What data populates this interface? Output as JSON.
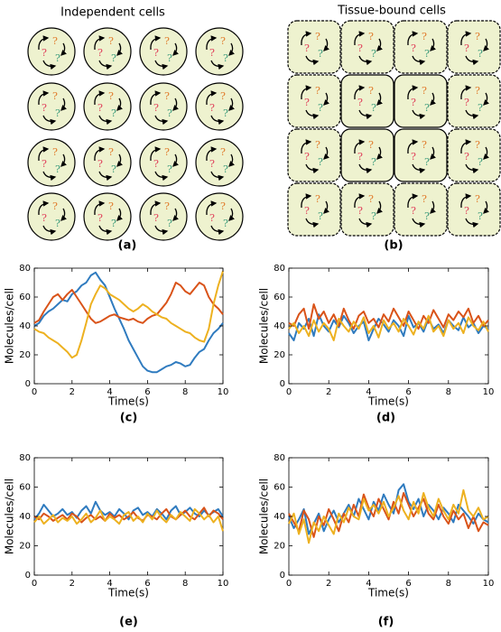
{
  "panel_a": {
    "title": "Independent cells",
    "label": "(a)",
    "cell_marks": [
      "?",
      "?",
      "?"
    ]
  },
  "panel_b": {
    "title": "Tissue-bound cells",
    "label": "(b)",
    "cell_marks": [
      "?",
      "?",
      "?"
    ]
  },
  "chart_data": [
    {
      "type": "line",
      "label": "(c)",
      "xlabel": "Time(s)",
      "ylabel": "Molecules/cell",
      "xlim": [
        0,
        10
      ],
      "ylim": [
        0,
        80
      ],
      "xticks": [
        0,
        2,
        4,
        6,
        8,
        10
      ],
      "yticks": [
        0,
        20,
        40,
        60,
        80
      ],
      "x": [
        0,
        0.25,
        0.5,
        0.75,
        1,
        1.25,
        1.5,
        1.75,
        2,
        2.25,
        2.5,
        2.75,
        3,
        3.25,
        3.5,
        3.75,
        4,
        4.25,
        4.5,
        4.75,
        5,
        5.25,
        5.5,
        5.75,
        6,
        6.25,
        6.5,
        6.75,
        7,
        7.25,
        7.5,
        7.75,
        8,
        8.25,
        8.5,
        8.75,
        9,
        9.25,
        9.5,
        9.75,
        10
      ],
      "series": [
        {
          "color": "#2f7bbf",
          "values": [
            40,
            42,
            47,
            50,
            52,
            55,
            58,
            57,
            62,
            64,
            68,
            70,
            75,
            77,
            72,
            68,
            60,
            52,
            45,
            38,
            30,
            24,
            18,
            12,
            9,
            8,
            8,
            10,
            12,
            13,
            15,
            14,
            12,
            13,
            18,
            22,
            24,
            30,
            35,
            38,
            42
          ]
        },
        {
          "color": "#d95319",
          "values": [
            42,
            44,
            50,
            55,
            60,
            62,
            58,
            62,
            65,
            60,
            55,
            50,
            45,
            42,
            43,
            45,
            47,
            48,
            46,
            45,
            44,
            45,
            43,
            42,
            45,
            47,
            48,
            52,
            56,
            62,
            70,
            68,
            64,
            62,
            66,
            70,
            68,
            60,
            55,
            52,
            48
          ]
        },
        {
          "color": "#edb120",
          "values": [
            38,
            36,
            35,
            32,
            30,
            28,
            25,
            22,
            18,
            20,
            30,
            42,
            55,
            62,
            68,
            66,
            62,
            60,
            58,
            55,
            52,
            50,
            52,
            55,
            53,
            50,
            48,
            46,
            45,
            42,
            40,
            38,
            36,
            35,
            32,
            30,
            29,
            38,
            55,
            68,
            78
          ]
        }
      ]
    },
    {
      "type": "line",
      "label": "(d)",
      "xlabel": "Time(s)",
      "ylabel": "Molecules/cell",
      "xlim": [
        0,
        10
      ],
      "ylim": [
        0,
        80
      ],
      "xticks": [
        0,
        2,
        4,
        6,
        8,
        10
      ],
      "yticks": [
        0,
        20,
        40,
        60,
        80
      ],
      "x": [
        0,
        0.25,
        0.5,
        0.75,
        1,
        1.25,
        1.5,
        1.75,
        2,
        2.25,
        2.5,
        2.75,
        3,
        3.25,
        3.5,
        3.75,
        4,
        4.25,
        4.5,
        4.75,
        5,
        5.25,
        5.5,
        5.75,
        6,
        6.25,
        6.5,
        6.75,
        7,
        7.25,
        7.5,
        7.75,
        8,
        8.25,
        8.5,
        8.75,
        9,
        9.25,
        9.5,
        9.75,
        10
      ],
      "series": [
        {
          "color": "#2f7bbf",
          "values": [
            35,
            30,
            42,
            38,
            45,
            33,
            48,
            40,
            36,
            44,
            39,
            47,
            42,
            35,
            40,
            43,
            30,
            38,
            45,
            41,
            36,
            44,
            40,
            33,
            47,
            39,
            42,
            36,
            45,
            38,
            41,
            35,
            44,
            40,
            37,
            46,
            39,
            42,
            35,
            40,
            38
          ]
        },
        {
          "color": "#d95319",
          "values": [
            42,
            40,
            48,
            52,
            38,
            55,
            45,
            50,
            42,
            48,
            40,
            52,
            44,
            38,
            47,
            50,
            42,
            45,
            39,
            48,
            43,
            52,
            46,
            40,
            50,
            44,
            38,
            47,
            42,
            51,
            45,
            39,
            48,
            44,
            50,
            46,
            52,
            42,
            47,
            40,
            44
          ]
        },
        {
          "color": "#edb120",
          "values": [
            38,
            42,
            35,
            40,
            33,
            44,
            36,
            42,
            38,
            30,
            45,
            40,
            36,
            43,
            38,
            46,
            35,
            40,
            32,
            44,
            38,
            42,
            36,
            45,
            40,
            34,
            43,
            38,
            47,
            36,
            40,
            33,
            44,
            38,
            42,
            35,
            46,
            40,
            37,
            43,
            36
          ]
        }
      ]
    },
    {
      "type": "line",
      "label": "(e)",
      "xlabel": "Time(s)",
      "ylabel": "Molecules/cell",
      "xlim": [
        0,
        10
      ],
      "ylim": [
        0,
        80
      ],
      "xticks": [
        0,
        2,
        4,
        6,
        8,
        10
      ],
      "yticks": [
        0,
        20,
        40,
        60,
        80
      ],
      "x": [
        0,
        0.25,
        0.5,
        0.75,
        1,
        1.25,
        1.5,
        1.75,
        2,
        2.25,
        2.5,
        2.75,
        3,
        3.25,
        3.5,
        3.75,
        4,
        4.25,
        4.5,
        4.75,
        5,
        5.25,
        5.5,
        5.75,
        6,
        6.25,
        6.5,
        6.75,
        7,
        7.25,
        7.5,
        7.75,
        8,
        8.25,
        8.5,
        8.75,
        9,
        9.25,
        9.5,
        9.75,
        10
      ],
      "series": [
        {
          "color": "#2f7bbf",
          "values": [
            38,
            42,
            48,
            44,
            40,
            42,
            45,
            41,
            43,
            39,
            44,
            47,
            42,
            50,
            44,
            41,
            43,
            40,
            45,
            42,
            38,
            44,
            46,
            41,
            43,
            40,
            45,
            42,
            38,
            44,
            47,
            41,
            43,
            46,
            42,
            40,
            44,
            41,
            43,
            45,
            40
          ]
        },
        {
          "color": "#d95319",
          "values": [
            40,
            38,
            42,
            40,
            37,
            39,
            41,
            38,
            42,
            40,
            36,
            39,
            41,
            38,
            40,
            37,
            42,
            39,
            41,
            38,
            40,
            43,
            39,
            37,
            41,
            40,
            38,
            42,
            45,
            40,
            38,
            41,
            44,
            40,
            38,
            42,
            46,
            40,
            44,
            42,
            38
          ]
        },
        {
          "color": "#edb120",
          "values": [
            36,
            40,
            35,
            38,
            41,
            36,
            39,
            37,
            40,
            35,
            38,
            42,
            36,
            39,
            44,
            37,
            40,
            38,
            35,
            41,
            43,
            37,
            40,
            36,
            42,
            38,
            44,
            39,
            36,
            41,
            38,
            43,
            40,
            37,
            45,
            42,
            38,
            41,
            36,
            40,
            30
          ]
        }
      ]
    },
    {
      "type": "line",
      "label": "(f)",
      "xlabel": "Time(s)",
      "ylabel": "Molecules/cell",
      "xlim": [
        0,
        10
      ],
      "ylim": [
        0,
        80
      ],
      "xticks": [
        0,
        2,
        4,
        6,
        8,
        10
      ],
      "yticks": [
        0,
        20,
        40,
        60,
        80
      ],
      "x": [
        0,
        0.25,
        0.5,
        0.75,
        1,
        1.25,
        1.5,
        1.75,
        2,
        2.25,
        2.5,
        2.75,
        3,
        3.25,
        3.5,
        3.75,
        4,
        4.25,
        4.5,
        4.75,
        5,
        5.25,
        5.5,
        5.75,
        6,
        6.25,
        6.5,
        6.75,
        7,
        7.25,
        7.5,
        7.75,
        8,
        8.25,
        8.5,
        8.75,
        9,
        9.25,
        9.5,
        9.75,
        10
      ],
      "series": [
        {
          "color": "#2f7bbf",
          "values": [
            40,
            32,
            38,
            45,
            28,
            35,
            42,
            30,
            38,
            44,
            36,
            42,
            48,
            40,
            52,
            45,
            38,
            50,
            44,
            55,
            48,
            42,
            58,
            62,
            50,
            45,
            52,
            40,
            48,
            44,
            38,
            46,
            42,
            36,
            48,
            44,
            40,
            35,
            42,
            38,
            36
          ]
        },
        {
          "color": "#d95319",
          "values": [
            42,
            36,
            30,
            44,
            38,
            26,
            40,
            34,
            45,
            38,
            30,
            42,
            36,
            48,
            40,
            55,
            46,
            40,
            52,
            45,
            38,
            50,
            42,
            56,
            48,
            40,
            46,
            52,
            42,
            38,
            48,
            40,
            35,
            44,
            38,
            42,
            32,
            40,
            30,
            36,
            34
          ]
        },
        {
          "color": "#edb120",
          "values": [
            35,
            42,
            28,
            38,
            22,
            36,
            30,
            40,
            34,
            28,
            42,
            36,
            46,
            40,
            38,
            52,
            44,
            48,
            42,
            50,
            40,
            46,
            54,
            44,
            38,
            50,
            42,
            56,
            46,
            40,
            52,
            44,
            38,
            48,
            42,
            58,
            44,
            40,
            46,
            38,
            40
          ]
        }
      ]
    }
  ]
}
